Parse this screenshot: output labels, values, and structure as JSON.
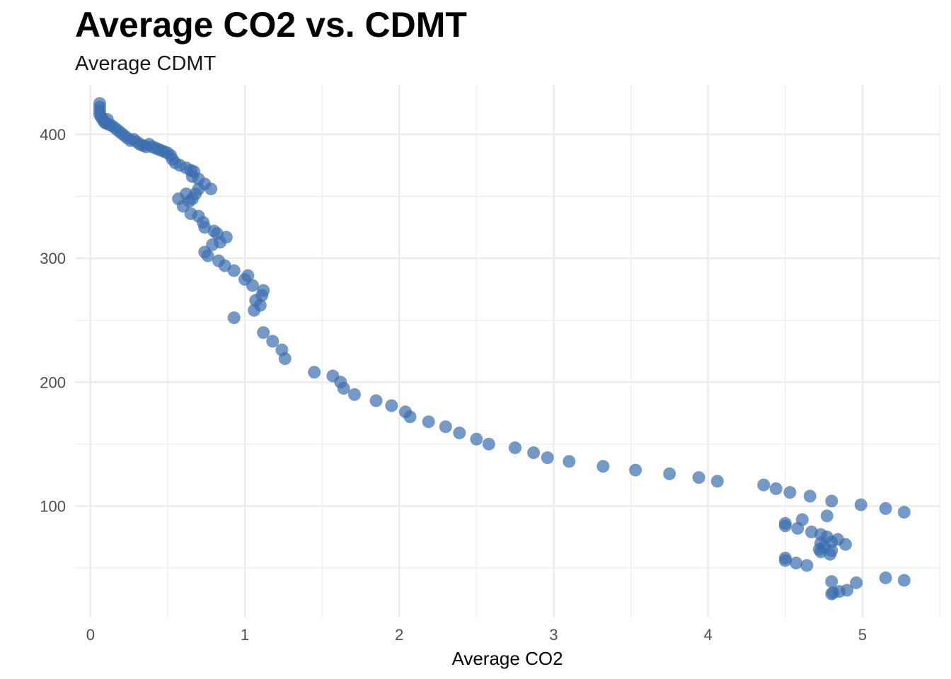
{
  "chart_data": {
    "type": "scatter",
    "title": "Average CO2 vs. CDMT",
    "subtitle": "Average CDMT",
    "xlabel": "Average CO2",
    "ylabel": "",
    "xlim": [
      -0.1,
      5.5
    ],
    "ylim": [
      10,
      440
    ],
    "x_ticks": [
      0,
      1,
      2,
      3,
      4,
      5
    ],
    "x_tick_labels": [
      "0",
      "1",
      "2",
      "3",
      "4",
      "5"
    ],
    "y_ticks": [
      100,
      200,
      300,
      400
    ],
    "y_tick_labels": [
      "100",
      "200",
      "300",
      "400"
    ],
    "grid": true,
    "legend": "none",
    "point_color": "#3A6EAE",
    "points": [
      [
        0.06,
        425
      ],
      [
        0.06,
        422
      ],
      [
        0.06,
        419
      ],
      [
        0.06,
        416
      ],
      [
        0.07,
        414
      ],
      [
        0.08,
        412
      ],
      [
        0.09,
        410
      ],
      [
        0.1,
        409
      ],
      [
        0.11,
        412
      ],
      [
        0.12,
        408
      ],
      [
        0.14,
        407
      ],
      [
        0.16,
        405
      ],
      [
        0.18,
        403
      ],
      [
        0.2,
        401
      ],
      [
        0.22,
        399
      ],
      [
        0.24,
        397
      ],
      [
        0.26,
        395
      ],
      [
        0.28,
        396
      ],
      [
        0.3,
        394
      ],
      [
        0.32,
        392
      ],
      [
        0.34,
        391
      ],
      [
        0.36,
        390
      ],
      [
        0.38,
        392
      ],
      [
        0.4,
        390
      ],
      [
        0.42,
        389
      ],
      [
        0.44,
        388
      ],
      [
        0.46,
        387
      ],
      [
        0.48,
        386
      ],
      [
        0.5,
        385
      ],
      [
        0.52,
        383
      ],
      [
        0.53,
        380
      ],
      [
        0.55,
        377
      ],
      [
        0.58,
        375
      ],
      [
        0.62,
        373
      ],
      [
        0.65,
        371
      ],
      [
        0.67,
        370
      ],
      [
        0.66,
        366
      ],
      [
        0.7,
        364
      ],
      [
        0.74,
        360
      ],
      [
        0.78,
        356
      ],
      [
        0.57,
        348
      ],
      [
        0.62,
        352
      ],
      [
        0.64,
        346
      ],
      [
        0.6,
        342
      ],
      [
        0.66,
        348
      ],
      [
        0.68,
        352
      ],
      [
        0.7,
        356
      ],
      [
        0.65,
        336
      ],
      [
        0.7,
        334
      ],
      [
        0.73,
        329
      ],
      [
        0.74,
        325
      ],
      [
        0.8,
        322
      ],
      [
        0.82,
        320
      ],
      [
        0.88,
        317
      ],
      [
        0.84,
        313
      ],
      [
        0.79,
        311
      ],
      [
        0.74,
        305
      ],
      [
        0.76,
        302
      ],
      [
        0.83,
        298
      ],
      [
        0.87,
        294
      ],
      [
        0.93,
        290
      ],
      [
        1.0,
        283
      ],
      [
        1.02,
        286
      ],
      [
        1.05,
        278
      ],
      [
        1.12,
        274
      ],
      [
        1.11,
        270
      ],
      [
        1.07,
        266
      ],
      [
        1.1,
        262
      ],
      [
        1.06,
        258
      ],
      [
        0.93,
        252
      ],
      [
        1.12,
        240
      ],
      [
        1.18,
        233
      ],
      [
        1.24,
        226
      ],
      [
        1.26,
        219
      ],
      [
        1.45,
        208
      ],
      [
        1.57,
        205
      ],
      [
        1.62,
        200
      ],
      [
        1.64,
        195
      ],
      [
        1.71,
        190
      ],
      [
        1.85,
        185
      ],
      [
        1.95,
        181
      ],
      [
        2.04,
        176
      ],
      [
        2.07,
        172
      ],
      [
        2.19,
        168
      ],
      [
        2.3,
        164
      ],
      [
        2.39,
        159
      ],
      [
        2.5,
        154
      ],
      [
        2.58,
        150
      ],
      [
        2.75,
        147
      ],
      [
        2.87,
        143
      ],
      [
        2.96,
        139
      ],
      [
        3.1,
        136
      ],
      [
        3.32,
        132
      ],
      [
        3.53,
        129
      ],
      [
        3.75,
        126
      ],
      [
        3.94,
        123
      ],
      [
        4.06,
        120
      ],
      [
        4.36,
        117
      ],
      [
        4.44,
        114
      ],
      [
        4.53,
        111
      ],
      [
        4.66,
        108
      ],
      [
        4.8,
        104
      ],
      [
        4.99,
        101
      ],
      [
        5.15,
        98
      ],
      [
        5.27,
        95
      ],
      [
        4.77,
        92
      ],
      [
        4.5,
        86
      ],
      [
        4.5,
        84
      ],
      [
        4.61,
        89
      ],
      [
        4.58,
        82
      ],
      [
        4.67,
        79
      ],
      [
        4.73,
        77
      ],
      [
        4.77,
        75
      ],
      [
        4.84,
        73
      ],
      [
        4.8,
        71
      ],
      [
        4.73,
        70
      ],
      [
        4.89,
        69
      ],
      [
        4.75,
        67
      ],
      [
        4.72,
        65
      ],
      [
        4.8,
        64
      ],
      [
        4.73,
        63
      ],
      [
        4.79,
        61
      ],
      [
        4.5,
        58
      ],
      [
        4.5,
        56
      ],
      [
        4.57,
        54
      ],
      [
        4.64,
        52
      ],
      [
        5.15,
        42
      ],
      [
        5.27,
        40
      ],
      [
        4.8,
        39
      ],
      [
        4.96,
        38
      ],
      [
        4.9,
        32
      ],
      [
        4.85,
        31
      ],
      [
        4.81,
        30
      ],
      [
        4.8,
        29
      ]
    ]
  }
}
